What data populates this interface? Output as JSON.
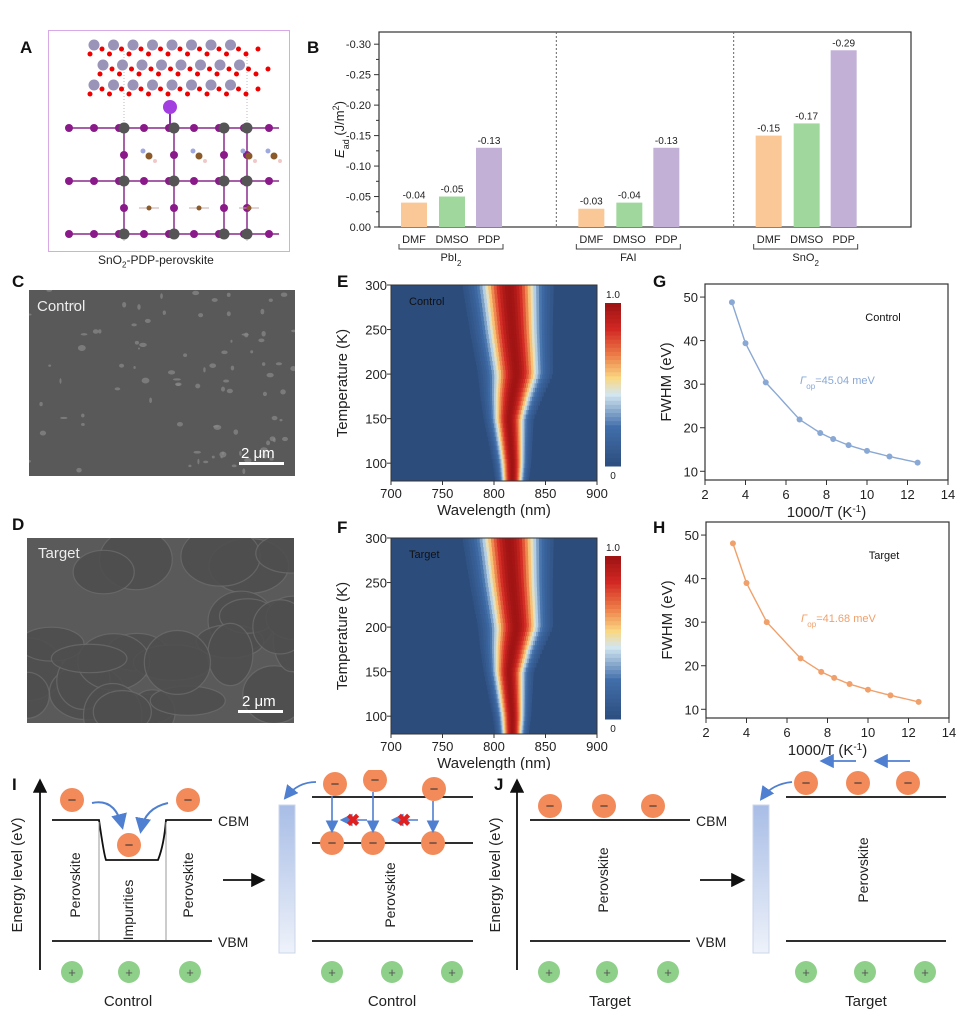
{
  "panels": {
    "A": {
      "letter": "A",
      "caption_main": "SnO",
      "caption_sub": "2",
      "caption_rest": "-PDP-perovskite"
    },
    "B": {
      "letter": "B"
    },
    "C": {
      "letter": "C",
      "sample": "Control",
      "scale": "2 μm"
    },
    "D": {
      "letter": "D",
      "sample": "Target",
      "scale": "2 μm"
    },
    "E": {
      "letter": "E"
    },
    "F": {
      "letter": "F"
    },
    "G": {
      "letter": "G"
    },
    "H": {
      "letter": "H"
    },
    "I": {
      "letter": "I"
    },
    "J": {
      "letter": "J"
    }
  },
  "chart_data": [
    {
      "id": "B",
      "type": "bar",
      "ylabel": "E_ad (J/m2)",
      "ylabel_main": "E",
      "ylabel_sub": "ad",
      "ylabel_unit": " (J/m",
      "ylabel_sup": "2",
      "ylabel_end": ")",
      "ylim": [
        0,
        -0.32
      ],
      "yticks": [
        "0.00",
        "-0.05",
        "-0.10",
        "-0.15",
        "-0.20",
        "-0.25",
        "-0.30"
      ],
      "ytick_values": [
        0,
        -0.05,
        -0.1,
        -0.15,
        -0.2,
        -0.25,
        -0.3
      ],
      "groups": [
        {
          "name": "PbI2",
          "name_main": "PbI",
          "name_sub": "2",
          "categories": [
            "DMF",
            "DMSO",
            "PDP"
          ],
          "values": [
            -0.04,
            -0.05,
            -0.13
          ],
          "labels": [
            "-0.04",
            "-0.05",
            "-0.13"
          ]
        },
        {
          "name": "FAI",
          "name_main": "FAI",
          "name_sub": "",
          "categories": [
            "DMF",
            "DMSO",
            "PDP"
          ],
          "values": [
            -0.03,
            -0.04,
            -0.13
          ],
          "labels": [
            "-0.03",
            "-0.04",
            "-0.13"
          ]
        },
        {
          "name": "SnO2",
          "name_main": "SnO",
          "name_sub": "2",
          "categories": [
            "DMF",
            "DMSO",
            "PDP"
          ],
          "values": [
            -0.15,
            -0.17,
            -0.29
          ],
          "labels": [
            "-0.15",
            "-0.17",
            "-0.29"
          ]
        }
      ],
      "colors": {
        "DMF": "#f9c896",
        "DMSO": "#a0d79c",
        "PDP": "#c3b0d7"
      }
    },
    {
      "id": "E",
      "type": "heatmap",
      "annotation": "Control",
      "xlabel": "Wavelength (nm)",
      "ylabel": "Temperature (K)",
      "xlim": [
        700,
        900
      ],
      "ylim": [
        80,
        300
      ],
      "xticks": [
        "700",
        "750",
        "800",
        "850",
        "900"
      ],
      "yticks": [
        "100",
        "150",
        "200",
        "250",
        "300"
      ],
      "colorbar": {
        "min_label": "0",
        "max_label": "1.0"
      },
      "peak_center_nm": [
        [
          80,
          818
        ],
        [
          100,
          818
        ],
        [
          150,
          815
        ],
        [
          175,
          818
        ],
        [
          200,
          822
        ],
        [
          250,
          818
        ],
        [
          300,
          815
        ]
      ],
      "peak_halfwidth_nm": [
        [
          80,
          8
        ],
        [
          150,
          12
        ],
        [
          200,
          18
        ],
        [
          300,
          22
        ]
      ]
    },
    {
      "id": "F",
      "type": "heatmap",
      "annotation": "Target",
      "xlabel": "Wavelength (nm)",
      "ylabel": "Temperature (K)",
      "xlim": [
        700,
        900
      ],
      "ylim": [
        80,
        300
      ],
      "xticks": [
        "700",
        "750",
        "800",
        "850",
        "900"
      ],
      "yticks": [
        "100",
        "150",
        "200",
        "250",
        "300"
      ],
      "colorbar": {
        "min_label": "0",
        "max_label": "1.0"
      },
      "peak_center_nm": [
        [
          80,
          818
        ],
        [
          100,
          818
        ],
        [
          150,
          815
        ],
        [
          175,
          818
        ],
        [
          200,
          822
        ],
        [
          250,
          818
        ],
        [
          300,
          815
        ]
      ],
      "peak_halfwidth_nm": [
        [
          80,
          8
        ],
        [
          150,
          12
        ],
        [
          200,
          18
        ],
        [
          300,
          22
        ]
      ]
    },
    {
      "id": "G",
      "type": "scatter",
      "annotation": "Control",
      "fit_label_main": "Γ",
      "fit_label_sub": "op",
      "fit_label_rest": "=45.04 meV",
      "xlabel": "1000/T (K-1)",
      "ylabel": "FWHM (eV)",
      "xlim": [
        2,
        14
      ],
      "ylim": [
        8,
        53
      ],
      "xticks": [
        "2",
        "4",
        "6",
        "8",
        "10",
        "12",
        "14"
      ],
      "yticks": [
        "10",
        "20",
        "30",
        "40",
        "50"
      ],
      "color": "#8aa8d4",
      "x": [
        3.33,
        4.0,
        5.0,
        6.67,
        7.69,
        8.33,
        9.09,
        10.0,
        11.11,
        12.5
      ],
      "y": [
        48.8,
        39.4,
        30.4,
        21.9,
        18.8,
        17.4,
        16.0,
        14.7,
        13.4,
        12.0
      ]
    },
    {
      "id": "H",
      "type": "scatter",
      "annotation": "Target",
      "fit_label_main": "Γ",
      "fit_label_sub": "op",
      "fit_label_rest": "=41.68 meV",
      "xlabel": "1000/T (K-1)",
      "ylabel": "FWHM (eV)",
      "xlim": [
        2,
        14
      ],
      "ylim": [
        8,
        53
      ],
      "xticks": [
        "2",
        "4",
        "6",
        "8",
        "10",
        "12",
        "14"
      ],
      "yticks": [
        "10",
        "20",
        "30",
        "40",
        "50"
      ],
      "color": "#f0a06a",
      "x": [
        3.33,
        4.0,
        5.0,
        6.67,
        7.69,
        8.33,
        9.09,
        10.0,
        11.11,
        12.5
      ],
      "y": [
        48.1,
        39.0,
        30.0,
        21.7,
        18.6,
        17.2,
        15.8,
        14.5,
        13.2,
        11.7
      ]
    }
  ],
  "diagram": {
    "ylabel": "Energy level (eV)",
    "cbm": "CBM",
    "vbm": "VBM",
    "perovskite": "Perovskite",
    "impurities": "Impurities",
    "control": "Control",
    "target": "Target",
    "electron_symbol": "−",
    "hole_symbol": "+",
    "blocked_symbol": "✖"
  },
  "axis_text": {
    "wavelength": "Wavelength (nm)",
    "temperature": "Temperature (K)",
    "fwhm": "FWHM (eV)",
    "invT_main": "1000/T (K",
    "invT_sup": "-1",
    "invT_end": ")"
  }
}
